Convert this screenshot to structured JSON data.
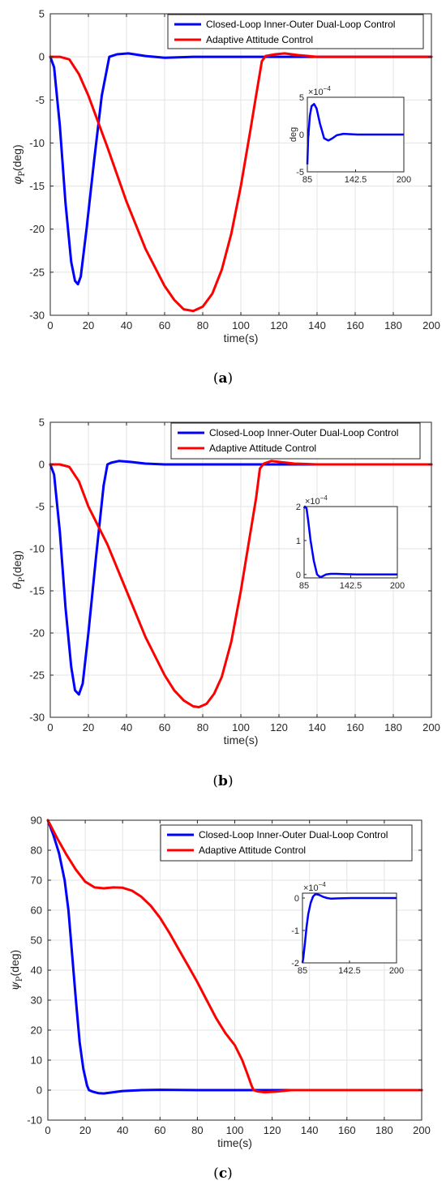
{
  "legend": {
    "closed_loop": "Closed-Loop Inner-Outer Dual-Loop Control",
    "adaptive": "Adaptive Attitude Control"
  },
  "colors": {
    "closed_loop": "#0000ff",
    "adaptive": "#ff0000",
    "grid": "#e3e3e3",
    "axis": "#262626"
  },
  "chart_data": [
    {
      "type": "line",
      "caption": "a",
      "ylabel_symbol": "φ",
      "ylabel_sub": "P",
      "ylabel_unit": "(deg)",
      "xlabel": "time(s)",
      "xlim": [
        0,
        200
      ],
      "ylim": [
        -30,
        5
      ],
      "xticks": [
        0,
        20,
        40,
        60,
        80,
        100,
        120,
        140,
        160,
        180,
        200
      ],
      "yticks": [
        -30,
        -25,
        -20,
        -15,
        -10,
        -5,
        0,
        5
      ],
      "grid": true,
      "legend_position": "top-right",
      "series": [
        {
          "name": "Closed-Loop Inner-Outer Dual-Loop Control",
          "x": [
            0,
            2,
            5,
            8,
            11,
            13,
            14.5,
            16,
            19,
            23,
            27,
            31,
            35,
            41,
            50,
            60,
            75,
            90,
            110,
            140,
            200
          ],
          "y": [
            0,
            -1.2,
            -8,
            -17,
            -23.8,
            -26,
            -26.4,
            -25.5,
            -20,
            -12,
            -4.5,
            0,
            0.3,
            0.4,
            0.1,
            -0.1,
            0,
            0,
            0,
            0,
            0
          ]
        },
        {
          "name": "Adaptive Attitude Control",
          "x": [
            0,
            5,
            10,
            15,
            20,
            30,
            40,
            50,
            60,
            65,
            70,
            75,
            80,
            85,
            90,
            95,
            100,
            105,
            108,
            111,
            113,
            118,
            123,
            130,
            140,
            200
          ],
          "y": [
            0,
            0,
            -0.3,
            -2,
            -4.5,
            -10.5,
            -16.8,
            -22.3,
            -26.6,
            -28.2,
            -29.3,
            -29.5,
            -29,
            -27.5,
            -24.7,
            -20.5,
            -15,
            -8.5,
            -4.5,
            -0.5,
            0.1,
            0.3,
            0.4,
            0.2,
            0,
            0
          ]
        }
      ],
      "inset": {
        "ylabel": "deg",
        "multiplier": "×10",
        "multiplier_exp": "−4",
        "xlim": [
          85,
          200
        ],
        "ylim": [
          -5,
          5
        ],
        "xticks": [
          "85",
          "142.5",
          "200"
        ],
        "yticks": [
          "5",
          "0",
          "-5"
        ],
        "x": [
          85,
          86,
          88,
          90,
          93,
          96,
          100,
          105,
          110,
          115,
          120,
          128,
          135,
          145,
          160,
          200
        ],
        "y": [
          -4,
          -0.5,
          2.5,
          3.8,
          4.1,
          3.5,
          1.5,
          -0.5,
          -0.8,
          -0.5,
          -0.1,
          0.1,
          0.05,
          0,
          0,
          0
        ]
      }
    },
    {
      "type": "line",
      "caption": "b",
      "ylabel_symbol": "θ",
      "ylabel_sub": "P",
      "ylabel_unit": "(deg)",
      "xlabel": "time(s)",
      "xlim": [
        0,
        200
      ],
      "ylim": [
        -30,
        5
      ],
      "xticks": [
        0,
        20,
        40,
        60,
        80,
        100,
        120,
        140,
        160,
        180,
        200
      ],
      "yticks": [
        -30,
        -25,
        -20,
        -15,
        -10,
        -5,
        0,
        5
      ],
      "grid": true,
      "legend_position": "top-right",
      "series": [
        {
          "name": "Closed-Loop Inner-Outer Dual-Loop Control",
          "x": [
            0,
            2,
            5,
            8,
            11,
            13,
            15,
            17,
            20,
            24,
            28,
            30,
            32,
            36,
            42,
            50,
            60,
            80,
            120,
            200
          ],
          "y": [
            0,
            -1.2,
            -8,
            -17,
            -24,
            -26.8,
            -27.3,
            -26,
            -20,
            -11,
            -2.5,
            0,
            0.2,
            0.4,
            0.3,
            0.1,
            0,
            0,
            0,
            0
          ]
        },
        {
          "name": "Adaptive Attitude Control",
          "x": [
            0,
            5,
            10,
            15,
            20,
            30,
            40,
            50,
            60,
            65,
            70,
            75,
            78,
            82,
            86,
            90,
            95,
            100,
            104,
            108,
            110,
            112,
            116,
            120,
            128,
            140,
            200
          ],
          "y": [
            0,
            0,
            -0.3,
            -2,
            -5,
            -9.5,
            -15,
            -20.5,
            -25,
            -26.8,
            -28,
            -28.7,
            -28.8,
            -28.4,
            -27.2,
            -25.2,
            -21,
            -15,
            -9.5,
            -4,
            -0.5,
            0.1,
            0.4,
            0.3,
            0.1,
            0,
            0
          ]
        }
      ],
      "inset": {
        "ylabel": "",
        "multiplier": "×10",
        "multiplier_exp": "−4",
        "xlim": [
          85,
          200
        ],
        "ylim": [
          -0.1,
          2
        ],
        "xticks": [
          "85",
          "142.5",
          "200"
        ],
        "yticks": [
          "2",
          "1",
          "0"
        ],
        "x": [
          85,
          86,
          88,
          90,
          93,
          97,
          101,
          105,
          108,
          112,
          118,
          125,
          135,
          150,
          200
        ],
        "y": [
          1.95,
          2.0,
          1.95,
          1.6,
          1.0,
          0.4,
          0.0,
          -0.08,
          -0.05,
          0.0,
          0.02,
          0.02,
          0.01,
          0,
          0
        ]
      }
    },
    {
      "type": "line",
      "caption": "c",
      "ylabel_symbol": "ψ",
      "ylabel_sub": "P",
      "ylabel_unit": "(deg)",
      "xlabel": "time(s)",
      "xlim": [
        0,
        200
      ],
      "ylim": [
        -10,
        90
      ],
      "xticks": [
        0,
        20,
        40,
        60,
        80,
        100,
        120,
        140,
        160,
        180,
        200
      ],
      "yticks": [
        -10,
        0,
        10,
        20,
        30,
        40,
        50,
        60,
        70,
        80,
        90
      ],
      "grid": true,
      "legend_position": "top-right",
      "series": [
        {
          "name": "Closed-Loop Inner-Outer Dual-Loop Control",
          "x": [
            0,
            3,
            6,
            9,
            11,
            13,
            15,
            17,
            19,
            21,
            22,
            24,
            27,
            30,
            35,
            40,
            50,
            60,
            80,
            120,
            200
          ],
          "y": [
            90,
            85,
            79,
            70,
            60,
            45,
            30,
            16,
            7,
            1.5,
            0,
            -0.5,
            -1,
            -1.1,
            -0.7,
            -0.3,
            0,
            0.1,
            0,
            0,
            0
          ]
        },
        {
          "name": "Adaptive Attitude Control",
          "x": [
            0,
            5,
            10,
            15,
            20,
            25,
            30,
            35,
            40,
            45,
            50,
            55,
            60,
            65,
            70,
            75,
            80,
            85,
            90,
            95,
            100,
            104,
            107,
            109,
            110,
            112,
            116,
            122,
            130,
            200
          ],
          "y": [
            90,
            84,
            78.5,
            73.5,
            69.5,
            67.6,
            67.3,
            67.6,
            67.5,
            66.5,
            64.5,
            61.5,
            57.5,
            52.5,
            47,
            41.5,
            36,
            30,
            24,
            19,
            15,
            10,
            5,
            1.5,
            0,
            -0.4,
            -0.7,
            -0.5,
            0,
            0
          ]
        }
      ],
      "inset": {
        "ylabel": "",
        "multiplier": "×10",
        "multiplier_exp": "−4",
        "xlim": [
          85,
          200
        ],
        "ylim": [
          -2,
          0.15
        ],
        "xticks": [
          "85",
          "142.5",
          "200"
        ],
        "yticks": [
          "0",
          "-1",
          "-2"
        ],
        "x": [
          85,
          86,
          88,
          90,
          92,
          95,
          98,
          101,
          105,
          110,
          115,
          120,
          130,
          145,
          200
        ],
        "y": [
          -2.0,
          -1.85,
          -1.4,
          -0.9,
          -0.5,
          -0.15,
          0.05,
          0.12,
          0.1,
          0.04,
          0.0,
          -0.02,
          -0.01,
          0,
          0
        ]
      }
    }
  ]
}
